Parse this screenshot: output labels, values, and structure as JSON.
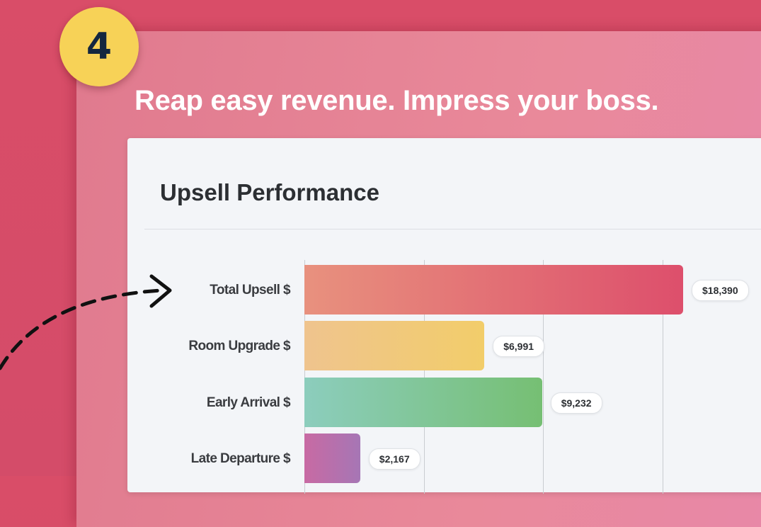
{
  "badge": {
    "number": "4"
  },
  "headline": "Reap easy revenue. Impress your boss.",
  "card": {
    "title": "Upsell Performance"
  },
  "chart_data": {
    "type": "bar",
    "orientation": "horizontal",
    "title": "Upsell Performance",
    "categories": [
      "Total Upsell $",
      "Room Upgrade $",
      "Early Arrival $",
      "Late Departure $"
    ],
    "values": [
      18390,
      6991,
      9232,
      2167
    ],
    "value_labels": [
      "$18,390",
      "$6,991",
      "$9,232",
      "$2,167"
    ],
    "grid": true,
    "colors": [
      [
        "#e8917e",
        "#dd4f6c"
      ],
      [
        "#efc48e",
        "#f2cd6a"
      ],
      [
        "#8ccdbd",
        "#76bf73"
      ],
      [
        "#c86aa3",
        "#a676b5"
      ]
    ]
  },
  "annotation": {
    "arrow_icon": "dashed-arrow-icon"
  }
}
